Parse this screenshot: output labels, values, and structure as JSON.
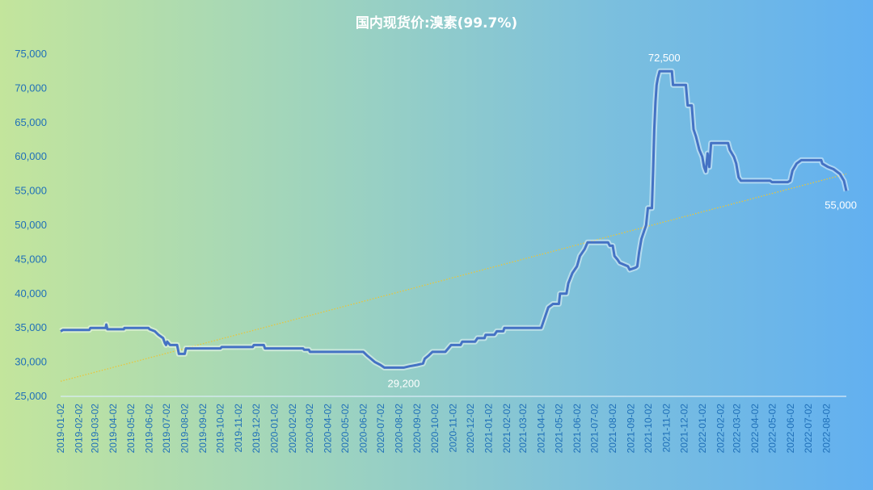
{
  "chart_data": {
    "type": "line",
    "title": "国内现货价:溴素(99.7%)",
    "xlabel": "",
    "ylabel": "",
    "ylim": [
      25000,
      75000
    ],
    "yticks": [
      25000,
      30000,
      35000,
      40000,
      45000,
      50000,
      55000,
      60000,
      65000,
      70000,
      75000
    ],
    "ytick_labels": [
      "25,000",
      "30,000",
      "35,000",
      "40,000",
      "45,000",
      "50,000",
      "55,000",
      "60,000",
      "65,000",
      "70,000",
      "75,000"
    ],
    "x_range": [
      "2019-01-02",
      "2022-09-05"
    ],
    "xtick_labels": [
      "2019-01-02",
      "2019-02-02",
      "2019-03-02",
      "2019-04-02",
      "2019-05-02",
      "2019-06-02",
      "2019-07-02",
      "2019-08-02",
      "2019-09-02",
      "2019-10-02",
      "2019-11-02",
      "2019-12-02",
      "2020-01-02",
      "2020-02-02",
      "2020-03-02",
      "2020-04-02",
      "2020-05-02",
      "2020-06-02",
      "2020-07-02",
      "2020-08-02",
      "2020-09-02",
      "2020-10-02",
      "2020-11-02",
      "2020-12-02",
      "2021-01-02",
      "2021-02-02",
      "2021-03-02",
      "2021-04-02",
      "2021-05-02",
      "2021-06-02",
      "2021-07-02",
      "2021-08-02",
      "2021-09-02",
      "2021-10-02",
      "2021-11-02",
      "2021-12-02",
      "2022-01-02",
      "2022-02-02",
      "2022-03-02",
      "2022-04-02",
      "2022-05-02",
      "2022-06-02",
      "2022-07-02",
      "2022-08-02"
    ],
    "series": [
      {
        "color": "#4472c4",
        "points": [
          [
            "2019-01-02",
            34500
          ],
          [
            "2019-01-06",
            34700
          ],
          [
            "2019-02-20",
            34700
          ],
          [
            "2019-02-22",
            35000
          ],
          [
            "2019-03-20",
            35000
          ],
          [
            "2019-03-21",
            35500
          ],
          [
            "2019-03-23",
            34800
          ],
          [
            "2019-04-20",
            34800
          ],
          [
            "2019-04-21",
            35000
          ],
          [
            "2019-06-01",
            35000
          ],
          [
            "2019-06-03",
            34800
          ],
          [
            "2019-06-12",
            34500
          ],
          [
            "2019-06-18",
            34000
          ],
          [
            "2019-06-26",
            33500
          ],
          [
            "2019-06-29",
            32800
          ],
          [
            "2019-07-01",
            32500
          ],
          [
            "2019-07-03",
            33000
          ],
          [
            "2019-07-08",
            32500
          ],
          [
            "2019-07-20",
            32500
          ],
          [
            "2019-07-23",
            31200
          ],
          [
            "2019-08-02",
            31200
          ],
          [
            "2019-08-04",
            32000
          ],
          [
            "2019-10-02",
            32000
          ],
          [
            "2019-10-04",
            32200
          ],
          [
            "2019-11-26",
            32200
          ],
          [
            "2019-11-28",
            32500
          ],
          [
            "2019-12-15",
            32500
          ],
          [
            "2019-12-17",
            32000
          ],
          [
            "2020-02-20",
            32000
          ],
          [
            "2020-02-22",
            31800
          ],
          [
            "2020-03-01",
            31800
          ],
          [
            "2020-03-03",
            31500
          ],
          [
            "2020-06-02",
            31500
          ],
          [
            "2020-06-08",
            31000
          ],
          [
            "2020-06-15",
            30500
          ],
          [
            "2020-06-22",
            30000
          ],
          [
            "2020-07-01",
            29600
          ],
          [
            "2020-07-08",
            29200
          ],
          [
            "2020-08-10",
            29200
          ],
          [
            "2020-08-20",
            29400
          ],
          [
            "2020-09-02",
            29600
          ],
          [
            "2020-09-12",
            29800
          ],
          [
            "2020-09-15",
            30500
          ],
          [
            "2020-09-22",
            31000
          ],
          [
            "2020-09-28",
            31500
          ],
          [
            "2020-10-20",
            31500
          ],
          [
            "2020-10-25",
            32000
          ],
          [
            "2020-10-30",
            32500
          ],
          [
            "2020-11-15",
            32500
          ],
          [
            "2020-11-18",
            33000
          ],
          [
            "2020-12-10",
            33000
          ],
          [
            "2020-12-14",
            33500
          ],
          [
            "2020-12-26",
            33500
          ],
          [
            "2020-12-28",
            34000
          ],
          [
            "2021-01-12",
            34000
          ],
          [
            "2021-01-16",
            34500
          ],
          [
            "2021-01-27",
            34500
          ],
          [
            "2021-01-29",
            35000
          ],
          [
            "2021-04-02",
            35000
          ],
          [
            "2021-04-06",
            36000
          ],
          [
            "2021-04-10",
            37000
          ],
          [
            "2021-04-14",
            38000
          ],
          [
            "2021-04-22",
            38500
          ],
          [
            "2021-05-02",
            38500
          ],
          [
            "2021-05-04",
            40000
          ],
          [
            "2021-05-15",
            40000
          ],
          [
            "2021-05-18",
            41500
          ],
          [
            "2021-05-25",
            43000
          ],
          [
            "2021-06-02",
            44000
          ],
          [
            "2021-06-07",
            45500
          ],
          [
            "2021-06-15",
            46500
          ],
          [
            "2021-06-20",
            47500
          ],
          [
            "2021-07-25",
            47500
          ],
          [
            "2021-07-28",
            47000
          ],
          [
            "2021-08-02",
            47000
          ],
          [
            "2021-08-05",
            45500
          ],
          [
            "2021-08-10",
            45000
          ],
          [
            "2021-08-14",
            44500
          ],
          [
            "2021-08-28",
            44000
          ],
          [
            "2021-08-31",
            43500
          ],
          [
            "2021-09-10",
            43800
          ],
          [
            "2021-09-13",
            44000
          ],
          [
            "2021-09-16",
            46000
          ],
          [
            "2021-09-20",
            48000
          ],
          [
            "2021-09-24",
            49000
          ],
          [
            "2021-09-28",
            50000
          ],
          [
            "2021-10-01",
            52500
          ],
          [
            "2021-10-08",
            52500
          ],
          [
            "2021-10-10",
            58000
          ],
          [
            "2021-10-12",
            64000
          ],
          [
            "2021-10-14",
            68000
          ],
          [
            "2021-10-16",
            70500
          ],
          [
            "2021-10-18",
            71500
          ],
          [
            "2021-10-21",
            72500
          ],
          [
            "2021-11-11",
            72500
          ],
          [
            "2021-11-13",
            70500
          ],
          [
            "2021-12-05",
            70500
          ],
          [
            "2021-12-08",
            67500
          ],
          [
            "2021-12-15",
            67500
          ],
          [
            "2021-12-18",
            64000
          ],
          [
            "2021-12-22",
            63000
          ],
          [
            "2021-12-28",
            61000
          ],
          [
            "2022-01-02",
            60000
          ],
          [
            "2022-01-05",
            58500
          ],
          [
            "2022-01-08",
            57800
          ],
          [
            "2022-01-11",
            60500
          ],
          [
            "2022-01-14",
            58500
          ],
          [
            "2022-01-17",
            62000
          ],
          [
            "2022-02-15",
            62000
          ],
          [
            "2022-02-18",
            61000
          ],
          [
            "2022-02-25",
            60000
          ],
          [
            "2022-03-01",
            59000
          ],
          [
            "2022-03-05",
            57000
          ],
          [
            "2022-03-09",
            56500
          ],
          [
            "2022-04-28",
            56500
          ],
          [
            "2022-05-01",
            56300
          ],
          [
            "2022-05-28",
            56300
          ],
          [
            "2022-06-01",
            56500
          ],
          [
            "2022-06-05",
            58000
          ],
          [
            "2022-06-12",
            59000
          ],
          [
            "2022-06-20",
            59500
          ],
          [
            "2022-07-24",
            59500
          ],
          [
            "2022-07-26",
            59000
          ],
          [
            "2022-08-05",
            58500
          ],
          [
            "2022-08-14",
            58200
          ],
          [
            "2022-08-25",
            57500
          ],
          [
            "2022-09-01",
            56500
          ],
          [
            "2022-09-05",
            55000
          ]
        ]
      },
      {
        "color": "#e8c53a",
        "style": "dotted",
        "points": [
          [
            "2019-01-02",
            27200
          ],
          [
            "2022-09-05",
            57500
          ]
        ]
      }
    ],
    "data_labels": [
      {
        "x": "2020-08-10",
        "y": 29200,
        "text": "29,200"
      },
      {
        "x": "2021-10-29",
        "y": 72500,
        "text": "72,500"
      },
      {
        "x": "2022-09-05",
        "y": 55000,
        "text": "55,000"
      }
    ],
    "grid": false,
    "legend": "none",
    "colors": {
      "axis": "#d9ecf7",
      "tick_text": "#1f6fb8",
      "title": "#ffffff",
      "label": "#ffffff"
    }
  }
}
